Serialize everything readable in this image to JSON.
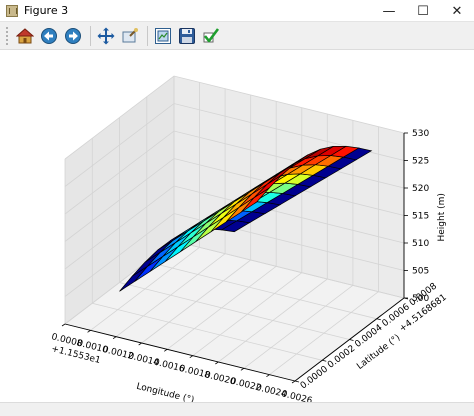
{
  "window": {
    "title": "Figure 3",
    "minimize_glyph": "—",
    "maximize_glyph": "☐",
    "close_glyph": "✕"
  },
  "toolbar": {
    "buttons": [
      {
        "icon": "home-icon",
        "name": "home-button"
      },
      {
        "icon": "back-arrow-icon",
        "name": "back-button"
      },
      {
        "icon": "forward-arrow-icon",
        "name": "forward-button"
      },
      {
        "icon": "pan-icon",
        "name": "pan-button"
      },
      {
        "icon": "zoom-icon",
        "name": "zoom-button"
      },
      {
        "icon": "subplots-icon",
        "name": "configure-subplots-button"
      },
      {
        "icon": "save-icon",
        "name": "save-button"
      },
      {
        "icon": "checkmark-icon",
        "name": "edit-parameters-button"
      }
    ]
  },
  "chart_data": {
    "type": "surface3d",
    "xlabel": "Longitude (°)",
    "ylabel": "Latitude (°)",
    "zlabel": "Height (m)",
    "x_offset_label": "+1.1553e1",
    "y_offset_label": "+4.5168681",
    "x_ticks": [
      "0.0008",
      "0.0010",
      "0.0012",
      "0.0014",
      "0.0016",
      "0.0018",
      "0.0020",
      "0.0022",
      "0.0024",
      "0.0026"
    ],
    "y_ticks": [
      "0.0000",
      "0.0002",
      "0.0004",
      "0.0006",
      "0.0008"
    ],
    "z_ticks": [
      "500",
      "505",
      "510",
      "515",
      "520",
      "525",
      "530"
    ],
    "xlim": [
      0.0008,
      0.0026
    ],
    "ylim": [
      0.0,
      0.0008
    ],
    "zlim": [
      500,
      530
    ],
    "colormap": "jet",
    "grid": true
  }
}
